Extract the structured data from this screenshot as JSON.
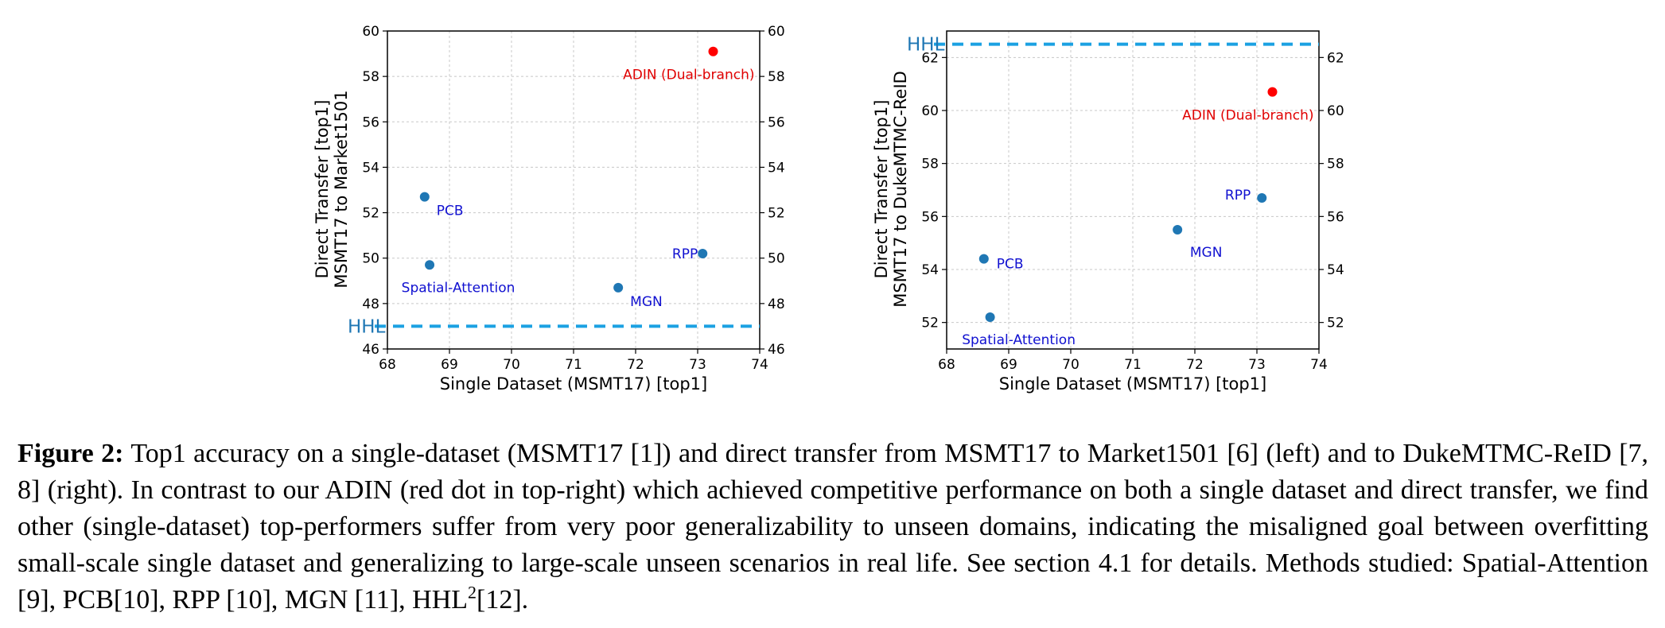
{
  "chart_data": [
    {
      "type": "scatter",
      "xlabel": "Single Dataset (MSMT17) [top1]",
      "ylabel_line1": "Direct Transfer [top1]",
      "ylabel_line2": "MSMT17 to Market1501",
      "xlim": [
        68,
        74
      ],
      "ylim": [
        46,
        60
      ],
      "xticks": [
        68,
        69,
        70,
        71,
        72,
        73,
        74
      ],
      "yticks": [
        46,
        48,
        50,
        52,
        54,
        56,
        58,
        60
      ],
      "grid": true,
      "right_axis_ticks": true,
      "hline": {
        "label": "HHL",
        "y": 47.0,
        "color": "#1ba1e2",
        "style": "dashed"
      },
      "points": [
        {
          "name": "ADIN (Dual-branch)",
          "x": 73.25,
          "y": 59.1,
          "color": "#ff0000",
          "label_color": "#e00000",
          "label_pos": "below-left"
        },
        {
          "name": "PCB",
          "x": 68.6,
          "y": 52.7,
          "color": "#1f77b4",
          "label_color": "#1010d0",
          "label_pos": "right-below"
        },
        {
          "name": "Spatial-Attention",
          "x": 68.68,
          "y": 49.7,
          "color": "#1f77b4",
          "label_color": "#1010d0",
          "label_pos": "below"
        },
        {
          "name": "RPP",
          "x": 73.08,
          "y": 50.2,
          "color": "#1f77b4",
          "label_color": "#1010d0",
          "label_pos": "left"
        },
        {
          "name": "MGN",
          "x": 71.72,
          "y": 48.7,
          "color": "#1f77b4",
          "label_color": "#1010d0",
          "label_pos": "right-below"
        }
      ]
    },
    {
      "type": "scatter",
      "xlabel": "Single Dataset (MSMT17) [top1]",
      "ylabel_line1": "Direct Transfer [top1]",
      "ylabel_line2": "MSMT17 to DukeMTMC-ReID",
      "xlim": [
        68,
        74
      ],
      "ylim": [
        51,
        63
      ],
      "xticks": [
        68,
        69,
        70,
        71,
        72,
        73,
        74
      ],
      "yticks": [
        52,
        54,
        56,
        58,
        60,
        62
      ],
      "grid": true,
      "right_axis_ticks": true,
      "hline": {
        "label": "HHL",
        "y": 62.5,
        "color": "#1ba1e2",
        "style": "dashed"
      },
      "points": [
        {
          "name": "ADIN (Dual-branch)",
          "x": 73.25,
          "y": 60.7,
          "color": "#ff0000",
          "label_color": "#e00000",
          "label_pos": "below-left"
        },
        {
          "name": "PCB",
          "x": 68.6,
          "y": 54.4,
          "color": "#1f77b4",
          "label_color": "#1010d0",
          "label_pos": "right"
        },
        {
          "name": "Spatial-Attention",
          "x": 68.7,
          "y": 52.2,
          "color": "#1f77b4",
          "label_color": "#1010d0",
          "label_pos": "below"
        },
        {
          "name": "RPP",
          "x": 73.08,
          "y": 56.7,
          "color": "#1f77b4",
          "label_color": "#1010d0",
          "label_pos": "left-above"
        },
        {
          "name": "MGN",
          "x": 71.72,
          "y": 55.5,
          "color": "#1f77b4",
          "label_color": "#1010d0",
          "label_pos": "below"
        }
      ]
    }
  ],
  "caption": {
    "label": "Figure 2:",
    "text": "Top1 accuracy on a single-dataset (MSMT17 [1]) and direct transfer from MSMT17 to Market1501 [6] (left) and to DukeMTMC-ReID [7, 8] (right). In contrast to our ADIN (red dot in top-right) which achieved competitive performance on both a single dataset and direct transfer, we find other (single-dataset) top-performers suffer from very poor generalizability to unseen domains, indicating the misaligned goal between overfitting small-scale single dataset and generalizing to large-scale unseen scenarios in real life. See section 4.1 for details. Methods studied: Spatial-Attention [9], PCB[10], RPP [10], MGN [11], HHL",
    "superscript": "2",
    "text_after": "[12]."
  }
}
